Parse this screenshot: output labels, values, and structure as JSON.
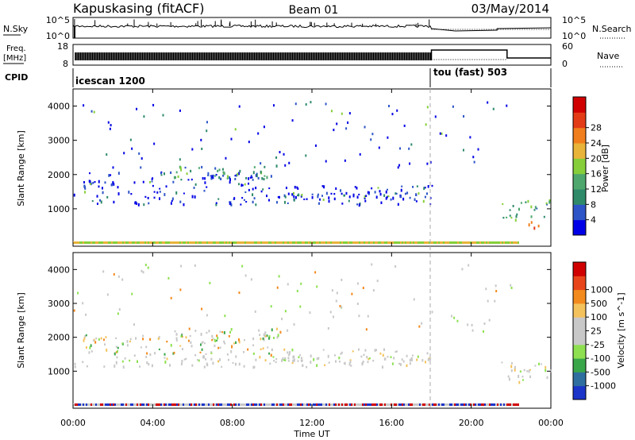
{
  "header": {
    "station": "Kapuskasing (fitACF)",
    "beam": "Beam 01",
    "date": "03/May/2014"
  },
  "nsky_panel": {
    "left_label": "N.Sky",
    "right_label": "N.Search",
    "left_ticks": [
      "10^5",
      "10^0"
    ],
    "right_ticks": [
      "10^5",
      "10^0"
    ]
  },
  "freq_panel": {
    "left_label_1": "Freq.",
    "left_label_2": "[MHz]",
    "right_label": "Nave",
    "left_ticks": [
      "18",
      "8"
    ],
    "right_ticks": [
      "60",
      "0"
    ]
  },
  "cpid_panel": {
    "label": "CPID",
    "segments": [
      {
        "name": "icescan 1200",
        "start_hour": 0,
        "end_hour": 18
      },
      {
        "name": "tou (fast) 503",
        "start_hour": 18,
        "end_hour": 24
      }
    ]
  },
  "x_axis": {
    "label": "Time UT",
    "ticks": [
      "00:00",
      "04:00",
      "08:00",
      "12:00",
      "16:00",
      "20:00",
      "00:00"
    ]
  },
  "colors": {
    "power_scale": [
      "#0000e6",
      "#2e55c8",
      "#2f8a6a",
      "#4ea86e",
      "#86cf3a",
      "#e8b43a",
      "#f07e1c",
      "#e33b16",
      "#d00000"
    ],
    "velocity_scale": [
      "#d00000",
      "#e8461a",
      "#f28a1e",
      "#f4c25c",
      "#c8c8c8",
      "#c8c8c8",
      "#8ee050",
      "#3aa64a",
      "#2f6f9f",
      "#1b35c9"
    ]
  },
  "chart_data": [
    {
      "type": "heatmap",
      "title": "",
      "ylabel": "Slant Range [km]",
      "xlim": [
        0,
        24
      ],
      "ylim": [
        0,
        4500
      ],
      "yticks": [
        "1000",
        "2000",
        "3000",
        "4000"
      ],
      "colorbar_label": "Power [dB]",
      "colorbar_ticks": [
        "4",
        "8",
        "12",
        "16",
        "20",
        "24",
        "28"
      ],
      "features": [
        {
          "t0": 0.0,
          "t1": 18.0,
          "r0": 1150,
          "r1": 1500,
          "level": "low",
          "desc": "main echo band"
        },
        {
          "t0": 0.5,
          "t1": 10.0,
          "r0": 1500,
          "r1": 2100,
          "level": "low",
          "desc": "rising band"
        },
        {
          "t0": 5.0,
          "t1": 10.5,
          "r0": 1900,
          "r1": 2300,
          "level": "mid",
          "desc": "peak band"
        },
        {
          "t0": 10.5,
          "t1": 18.0,
          "r0": 1300,
          "r1": 1700,
          "level": "low",
          "desc": "descending band"
        },
        {
          "t0": 21.5,
          "t1": 24.0,
          "r0": 700,
          "r1": 1300,
          "level": "mid",
          "desc": "late echoes"
        },
        {
          "t0": 22.8,
          "t1": 23.9,
          "r0": 400,
          "r1": 650,
          "level": "high",
          "desc": "near range strong"
        }
      ]
    },
    {
      "type": "heatmap",
      "title": "",
      "ylabel": "Slant Range [km]",
      "xlim": [
        0,
        24
      ],
      "ylim": [
        0,
        4500
      ],
      "yticks": [
        "1000",
        "2000",
        "3000",
        "4000"
      ],
      "colorbar_label": "Velocity [m s^-1]",
      "colorbar_ticks": [
        "1000",
        "500",
        "100",
        "25",
        "-25",
        "-100",
        "-500",
        "-1000"
      ],
      "features": [
        {
          "t0": 0.0,
          "t1": 18.0,
          "r0": 1150,
          "r1": 1500,
          "level": "ground",
          "desc": "main echo band"
        },
        {
          "t0": 0.5,
          "t1": 10.0,
          "r0": 1500,
          "r1": 2100,
          "level": "mixed",
          "desc": "rising band"
        },
        {
          "t0": 5.0,
          "t1": 10.5,
          "r0": 1900,
          "r1": 2300,
          "level": "mixed",
          "desc": "peak band"
        },
        {
          "t0": 10.5,
          "t1": 18.0,
          "r0": 1300,
          "r1": 1700,
          "level": "ground",
          "desc": "descending band"
        },
        {
          "t0": 21.5,
          "t1": 24.0,
          "r0": 700,
          "r1": 1300,
          "level": "ground",
          "desc": "late echoes"
        }
      ]
    }
  ]
}
